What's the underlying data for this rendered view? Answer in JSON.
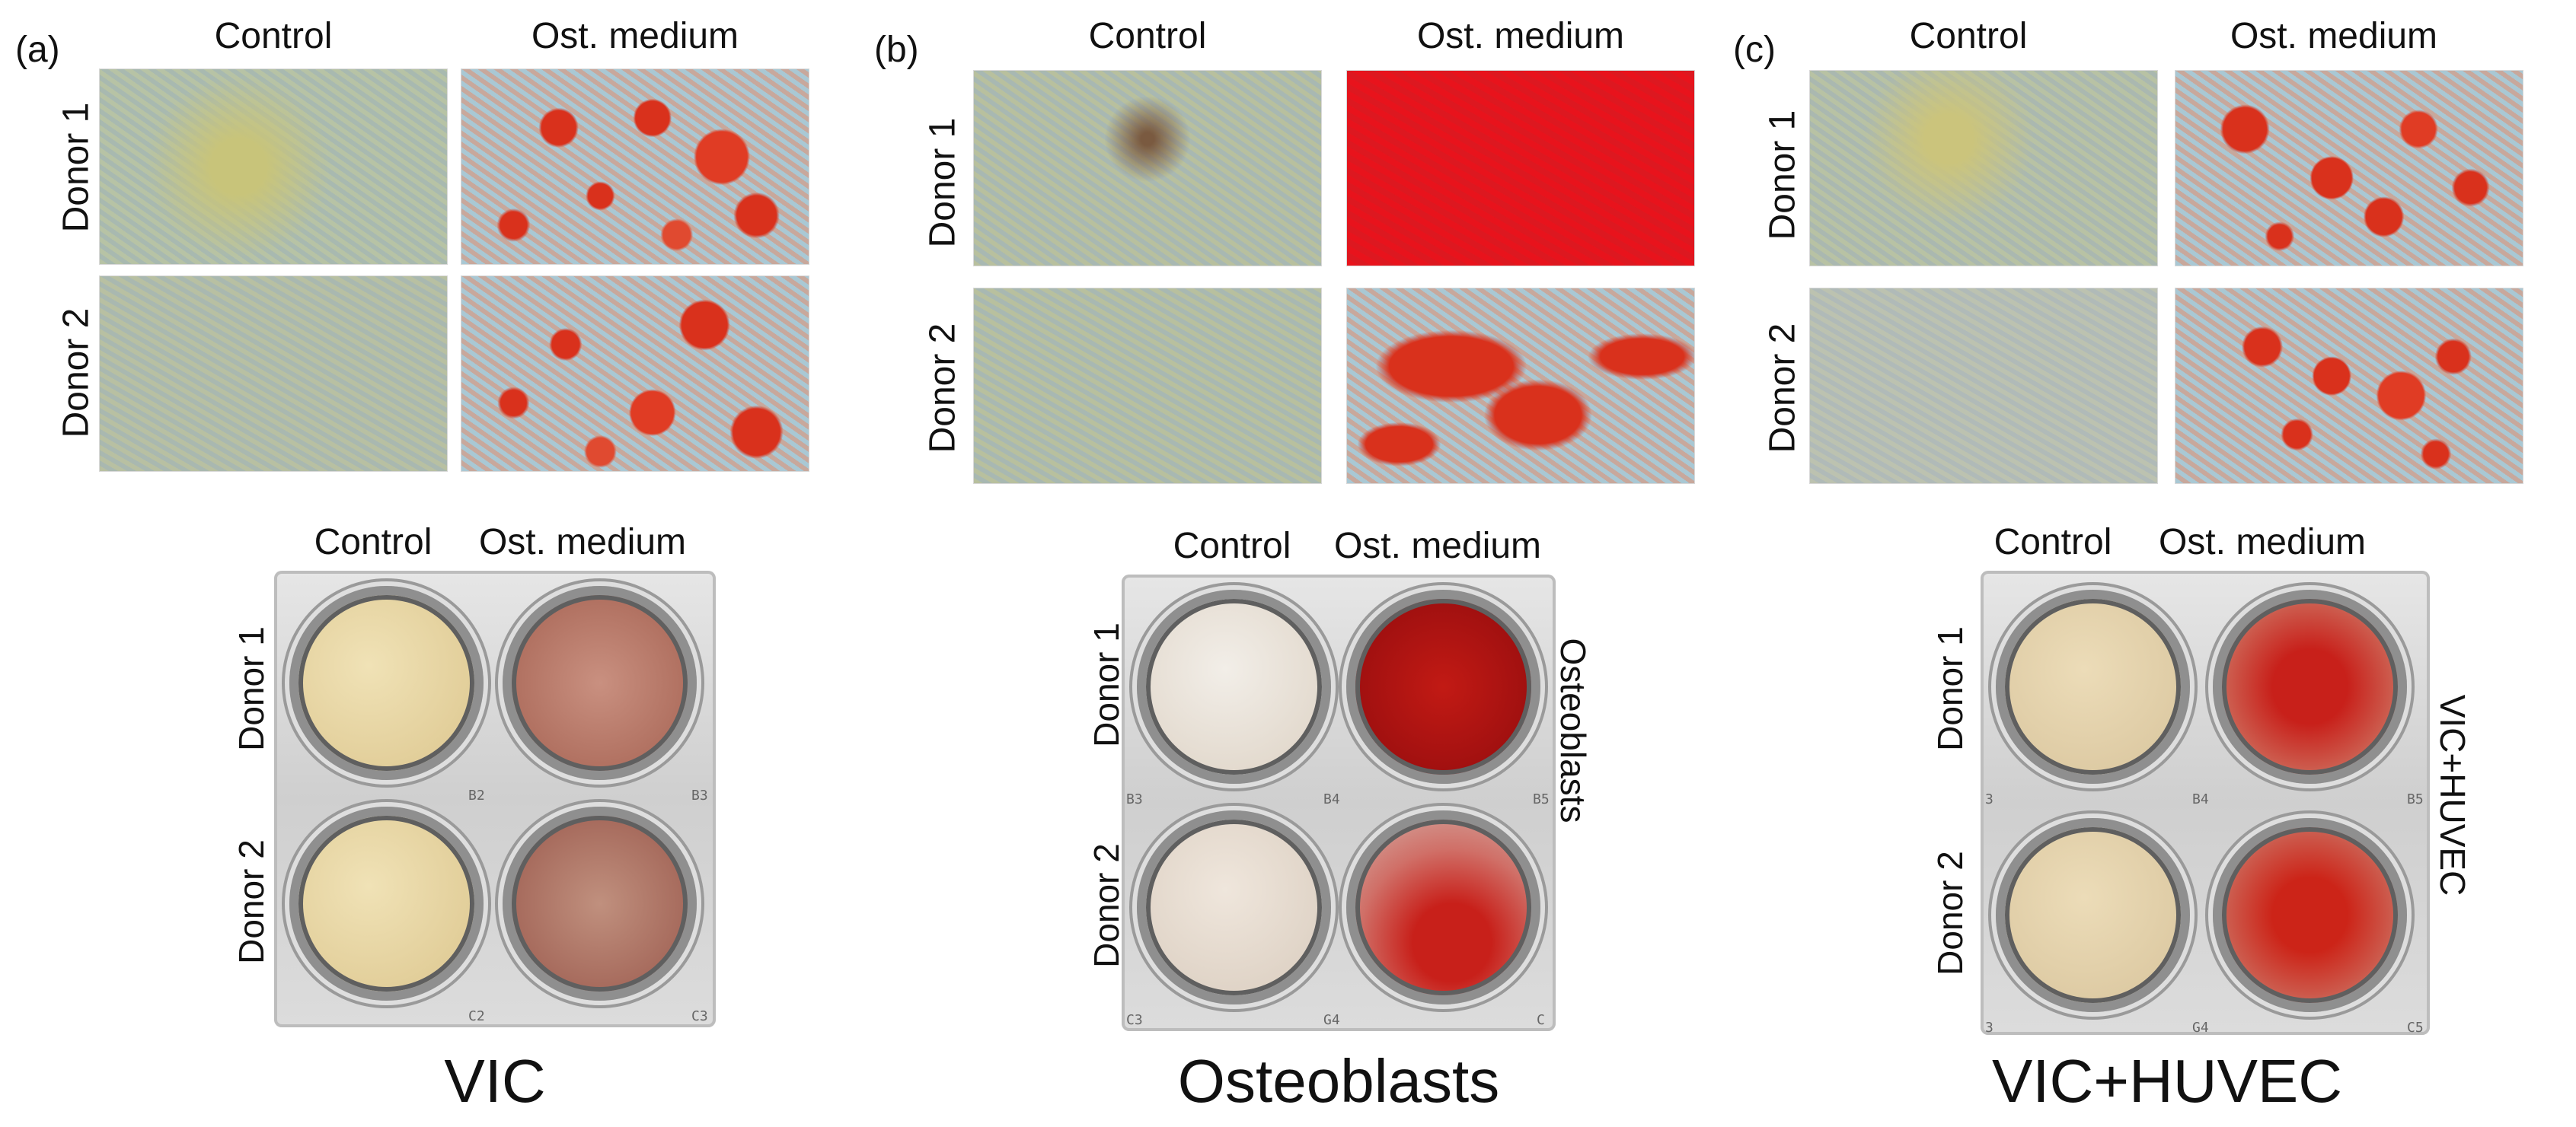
{
  "panels": [
    {
      "label": "(a)",
      "micrograph_headers": [
        "Control",
        "Ost. medium"
      ],
      "rows": [
        "Donor 1",
        "Donor 2"
      ],
      "plate_headers": [
        "Control",
        "Ost. medium"
      ],
      "plate_rows": [
        "Donor 1",
        "Donor 2"
      ],
      "well_codes": [
        "B2",
        "B3",
        "C2",
        "C3"
      ],
      "side_label": "",
      "caption": "VIC"
    },
    {
      "label": "(b)",
      "micrograph_headers": [
        "Control",
        "Ost. medium"
      ],
      "rows": [
        "Donor 1",
        "Donor 2"
      ],
      "plate_headers": [
        "Control",
        "Ost. medium"
      ],
      "plate_rows": [
        "Donor 1",
        "Donor 2"
      ],
      "well_codes": [
        "B3",
        "B4",
        "B5",
        "C3",
        "G4",
        "C"
      ],
      "side_label": "Osteoblasts",
      "caption": "Osteoblasts"
    },
    {
      "label": "(c)",
      "micrograph_headers": [
        "Control",
        "Ost. medium"
      ],
      "rows": [
        "Donor 1",
        "Donor 2"
      ],
      "plate_headers": [
        "Control",
        "Ost. medium"
      ],
      "plate_rows": [
        "Donor 1",
        "Donor 2"
      ],
      "well_codes": [
        "3",
        "B4",
        "B5",
        "3",
        "G4",
        "C5"
      ],
      "side_label": "VIC+HUVEC",
      "caption": "VIC+HUVEC"
    }
  ],
  "colors": {
    "control_stain": "#b9b98c",
    "mineral_red": "#d42a14",
    "full_red": "#e8131c",
    "control_well": "#e4d2a8",
    "control_well_b": "#ddd2c4"
  }
}
